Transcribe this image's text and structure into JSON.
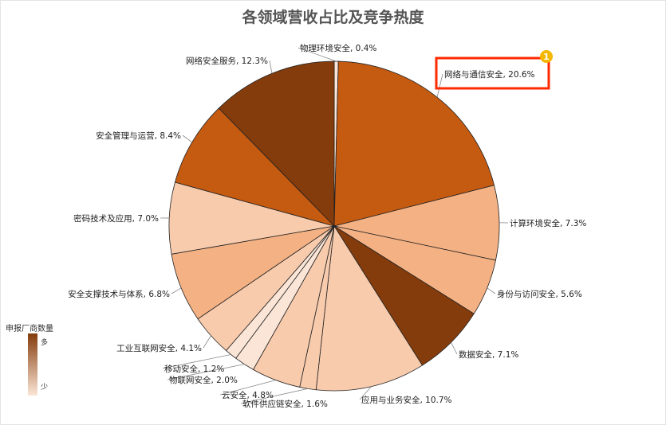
{
  "chart_data": {
    "type": "pie",
    "title": "各领域营收占比及竞争热度",
    "unit": "%",
    "slices": [
      {
        "label": "物理环境安全",
        "value": 0.4,
        "color": "#fbe5d6"
      },
      {
        "label": "网络与通信安全",
        "value": 20.6,
        "color": "#c55a11",
        "highlighted": true
      },
      {
        "label": "计算环境安全",
        "value": 7.3,
        "color": "#f4b183"
      },
      {
        "label": "身份与访问安全",
        "value": 5.6,
        "color": "#f4b183"
      },
      {
        "label": "数据安全",
        "value": 7.1,
        "color": "#843c0c"
      },
      {
        "label": "应用与业务安全",
        "value": 10.7,
        "color": "#f8cbad"
      },
      {
        "label": "软件供应链安全",
        "value": 1.6,
        "color": "#f8cbad"
      },
      {
        "label": "云安全",
        "value": 4.8,
        "color": "#f8cbad"
      },
      {
        "label": "物联网安全",
        "value": 2.0,
        "color": "#fbe5d6"
      },
      {
        "label": "移动安全",
        "value": 1.2,
        "color": "#fbe5d6"
      },
      {
        "label": "工业互联网安全",
        "value": 4.1,
        "color": "#f8cbad"
      },
      {
        "label": "安全支撑技术与体系",
        "value": 6.8,
        "color": "#f4b183"
      },
      {
        "label": "密码技术及应用",
        "value": 7.0,
        "color": "#f8cbad"
      },
      {
        "label": "安全管理与运营",
        "value": 8.4,
        "color": "#c55a11"
      },
      {
        "label": "网络安全服务",
        "value": 12.3,
        "color": "#843c0c"
      }
    ],
    "legend": {
      "title": "申报厂商数量",
      "high": "多",
      "low": "少",
      "color_high": "#843c0c",
      "color_low": "#fbe5d6"
    },
    "highlight_color": "#ff2a00",
    "badge": "1",
    "badge_color": "#f5b800"
  }
}
